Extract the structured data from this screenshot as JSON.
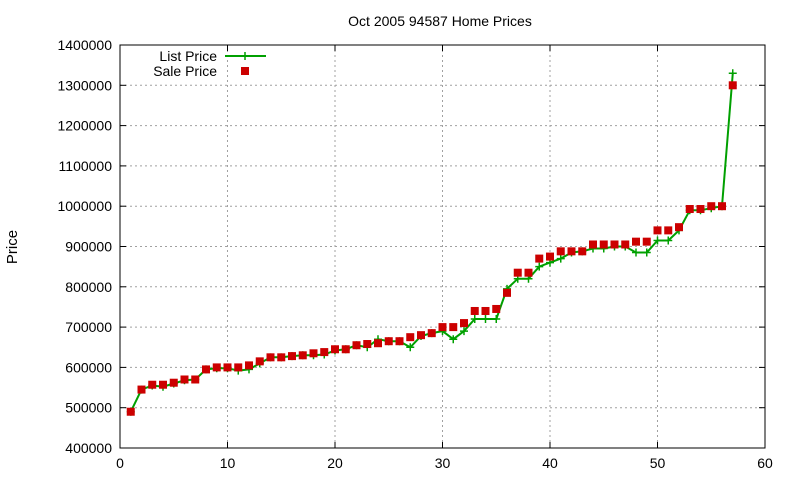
{
  "chart_data": {
    "type": "scatter",
    "title": "Oct 2005 94587 Home Prices",
    "xlabel": "",
    "ylabel": "Price",
    "xlim": [
      0,
      60
    ],
    "ylim": [
      400000,
      1400000
    ],
    "x_ticks": [
      0,
      10,
      20,
      30,
      40,
      50,
      60
    ],
    "y_ticks": [
      400000,
      500000,
      600000,
      700000,
      800000,
      900000,
      1000000,
      1100000,
      1200000,
      1300000,
      1400000
    ],
    "grid": true,
    "legend_position": "top-left",
    "series": [
      {
        "name": "List Price",
        "style": "line-plus",
        "color": "#00a000",
        "x": [
          1,
          2,
          3,
          4,
          5,
          6,
          7,
          8,
          9,
          10,
          11,
          12,
          13,
          14,
          15,
          16,
          17,
          18,
          19,
          20,
          21,
          22,
          23,
          24,
          25,
          26,
          27,
          28,
          29,
          30,
          31,
          32,
          33,
          34,
          35,
          36,
          37,
          38,
          39,
          40,
          41,
          42,
          43,
          44,
          45,
          46,
          47,
          48,
          49,
          50,
          51,
          52,
          53,
          54,
          55,
          56,
          57
        ],
        "values": [
          490000,
          545000,
          555000,
          552000,
          560000,
          568000,
          570000,
          595000,
          598000,
          598000,
          592000,
          595000,
          610000,
          625000,
          625000,
          628000,
          630000,
          630000,
          632000,
          642000,
          645000,
          655000,
          650000,
          670000,
          665000,
          665000,
          650000,
          678000,
          685000,
          690000,
          670000,
          690000,
          720000,
          720000,
          720000,
          795000,
          820000,
          820000,
          850000,
          860000,
          870000,
          885000,
          888000,
          895000,
          895000,
          900000,
          900000,
          885000,
          885000,
          915000,
          915000,
          940000,
          990000,
          990000,
          995000,
          1000000,
          1330000
        ]
      },
      {
        "name": "Sale Price",
        "style": "square",
        "color": "#cc0000",
        "x": [
          1,
          2,
          3,
          4,
          5,
          6,
          7,
          8,
          9,
          10,
          11,
          12,
          13,
          14,
          15,
          16,
          17,
          18,
          19,
          20,
          21,
          22,
          23,
          24,
          25,
          26,
          27,
          28,
          29,
          30,
          31,
          32,
          33,
          34,
          35,
          36,
          37,
          38,
          39,
          40,
          41,
          42,
          43,
          44,
          45,
          46,
          47,
          48,
          49,
          50,
          51,
          52,
          53,
          54,
          55,
          56,
          57
        ],
        "values": [
          490000,
          545000,
          557000,
          557000,
          562000,
          570000,
          570000,
          595000,
          600000,
          600000,
          600000,
          605000,
          615000,
          625000,
          625000,
          628000,
          630000,
          635000,
          638000,
          645000,
          645000,
          655000,
          658000,
          660000,
          665000,
          665000,
          675000,
          680000,
          685000,
          700000,
          700000,
          710000,
          740000,
          740000,
          745000,
          785000,
          835000,
          835000,
          870000,
          875000,
          888000,
          888000,
          888000,
          905000,
          905000,
          905000,
          905000,
          912000,
          912000,
          940000,
          940000,
          948000,
          993000,
          993000,
          1000000,
          1000000,
          1300000
        ]
      }
    ]
  }
}
